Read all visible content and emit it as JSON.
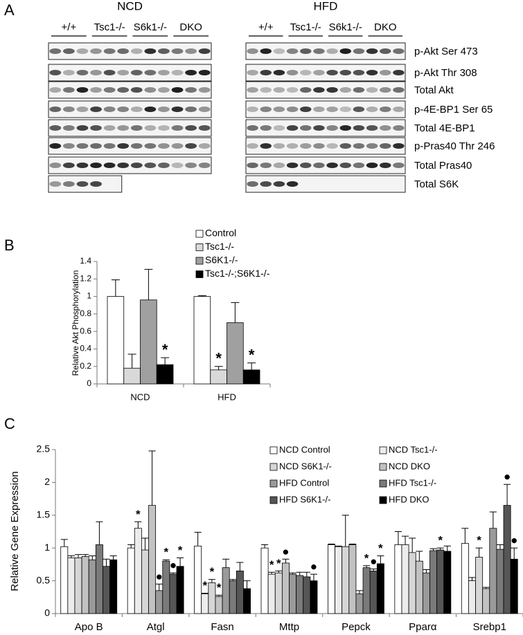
{
  "panel_a": {
    "panel_label": "A",
    "blots": [
      {
        "title": "NCD",
        "groups": [
          "+/+",
          "Tsc1-/-",
          "S6k1-/-",
          "DKO"
        ]
      },
      {
        "title": "HFD",
        "groups": [
          "+/+",
          "Tsc1-/-",
          "S6k1-/-",
          "DKO"
        ]
      }
    ],
    "rows": [
      "p-Akt Ser 473",
      "p-Akt Thr 308",
      "Total Akt",
      "p-4E-BP1 Ser 65",
      "Total 4E-BP1",
      "p-Pras40 Thr 246",
      "Total Pras40",
      "Total S6K"
    ]
  },
  "chart_data": [
    {
      "type": "bar",
      "panel_label": "B",
      "ylabel": "Relative Akt Phosphorylation",
      "categories": [
        "NCD",
        "HFD"
      ],
      "series": [
        {
          "name": "Control",
          "color": "#ffffff",
          "values": [
            1,
            1
          ],
          "errors": [
            0.19,
            0.01
          ],
          "markers": [
            null,
            null
          ]
        },
        {
          "name": "Tsc1-/-",
          "color": "#d9d9d9",
          "values": [
            0.18,
            0.16
          ],
          "errors": [
            0.16,
            0.04
          ],
          "markers": [
            null,
            "*"
          ]
        },
        {
          "name": "S6K1-/-",
          "color": "#a0a0a0",
          "values": [
            0.96,
            0.7
          ],
          "errors": [
            0.35,
            0.23
          ],
          "markers": [
            null,
            null
          ]
        },
        {
          "name": "Tsc1-/-;S6K1-/-",
          "color": "#000000",
          "values": [
            0.22,
            0.16
          ],
          "errors": [
            0.08,
            0.08
          ],
          "markers": [
            "*",
            "*"
          ]
        }
      ],
      "ylim": [
        0,
        1.4
      ],
      "yticks": [
        0,
        0.2,
        0.4,
        0.6,
        0.8,
        1,
        1.2,
        1.4
      ],
      "grid": false
    },
    {
      "type": "bar",
      "panel_label": "C",
      "ylabel": "Relative Gene Expression",
      "categories": [
        "Apo B",
        "Atgl",
        "Fasn",
        "Mttp",
        "Pepck",
        "Pparα",
        "Srebp1"
      ],
      "series": [
        {
          "name": "NCD Control",
          "color": "#ffffff",
          "values": [
            1.02,
            1.0,
            1.03,
            1.0,
            1.05,
            1.05,
            1.07
          ],
          "errors": [
            0.11,
            0.05,
            0.21,
            0.05,
            0.01,
            0.2,
            0.23
          ],
          "markers": [
            null,
            null,
            null,
            null,
            null,
            null,
            null
          ]
        },
        {
          "name": "NCD Tsc1-/-",
          "color": "#ececec",
          "values": [
            0.85,
            1.3,
            0.3,
            0.6,
            1.02,
            1.05,
            0.5
          ],
          "errors": [
            0.03,
            0.1,
            0.01,
            0.03,
            0.01,
            0.13,
            0.05
          ],
          "markers": [
            null,
            "*",
            "*",
            "*",
            null,
            null,
            null
          ]
        },
        {
          "name": "NCD S6K1-/-",
          "color": "#d6d6d6",
          "values": [
            0.85,
            0.97,
            0.47,
            0.62,
            1.02,
            0.93,
            0.86
          ],
          "errors": [
            0.05,
            0.18,
            0.05,
            0.03,
            0.48,
            0.22,
            0.14
          ],
          "markers": [
            null,
            null,
            "*",
            "*",
            null,
            null,
            "*"
          ]
        },
        {
          "name": "NCD DKO",
          "color": "#c2c2c2",
          "values": [
            0.87,
            1.65,
            0.26,
            0.77,
            1.05,
            0.8,
            0.38
          ],
          "errors": [
            0.03,
            0.83,
            0.02,
            0.06,
            0.01,
            0.15,
            0.02
          ],
          "markers": [
            null,
            null,
            "*",
            "●",
            null,
            null,
            null
          ]
        },
        {
          "name": "HFD Control",
          "color": "#9a9a9a",
          "values": [
            0.82,
            0.35,
            0.7,
            0.6,
            0.3,
            0.62,
            1.3
          ],
          "errors": [
            0.06,
            0.1,
            0.13,
            0.02,
            0.05,
            0.05,
            0.25
          ],
          "markers": [
            null,
            "●",
            null,
            null,
            null,
            null,
            null
          ]
        },
        {
          "name": "HFD Tsc1-/-",
          "color": "#7a7a7a",
          "values": [
            1.05,
            0.8,
            0.5,
            0.58,
            0.7,
            0.96,
            0.98
          ],
          "errors": [
            0.35,
            0.02,
            0.02,
            0.05,
            0.03,
            0.03,
            0.07
          ],
          "markers": [
            null,
            "*",
            null,
            null,
            "*",
            null,
            null
          ]
        },
        {
          "name": "HFD S6K1-/-",
          "color": "#565656",
          "values": [
            0.72,
            0.6,
            0.65,
            0.56,
            0.65,
            0.97,
            1.65
          ],
          "errors": [
            0.11,
            0.02,
            0.13,
            0.07,
            0.03,
            0.03,
            0.32
          ],
          "markers": [
            null,
            "●",
            null,
            null,
            "●",
            "*",
            "●"
          ]
        },
        {
          "name": "HFD DKO",
          "color": "#000000",
          "values": [
            0.82,
            0.72,
            0.38,
            0.5,
            0.76,
            0.95,
            0.83
          ],
          "errors": [
            0.06,
            0.13,
            0.12,
            0.1,
            0.12,
            0.08,
            0.17
          ],
          "markers": [
            null,
            "*",
            null,
            "●",
            "*",
            null,
            "●"
          ]
        }
      ],
      "ylim": [
        0,
        2.5
      ],
      "yticks": [
        0,
        0.5,
        1,
        1.5,
        2,
        2.5
      ],
      "grid": false
    }
  ]
}
